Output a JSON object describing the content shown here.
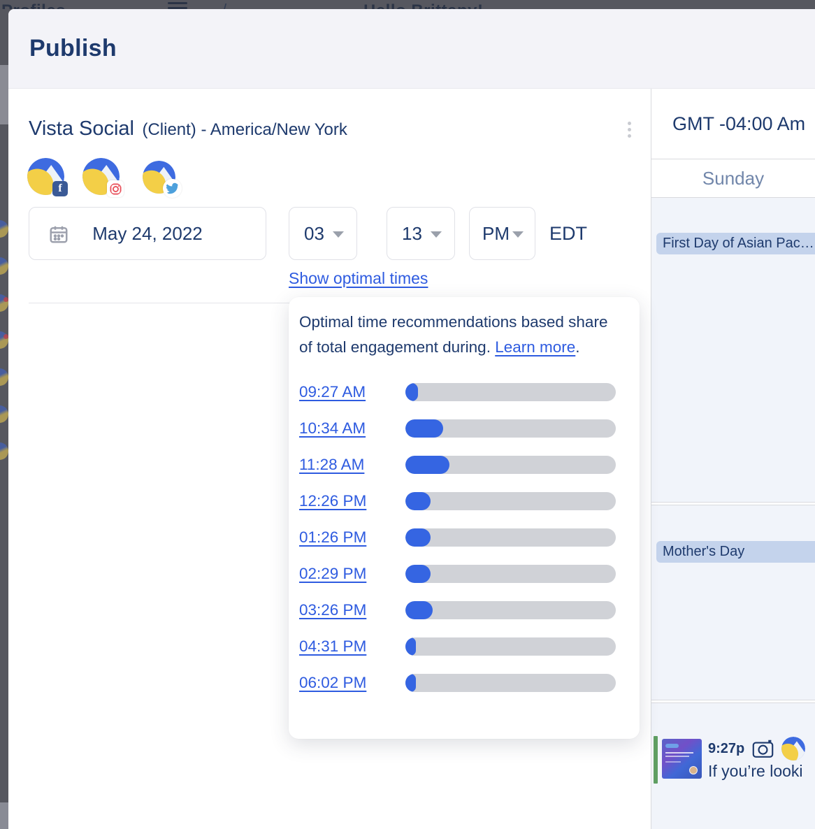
{
  "background": {
    "profiles_label": "Profiles",
    "greeting": "Hello Brittany!"
  },
  "modal": {
    "title": "Publish",
    "scheduler": {
      "title_main": "Vista Social",
      "title_suffix": "(Client) - America/New York",
      "profiles": [
        {
          "network": "facebook"
        },
        {
          "network": "instagram"
        },
        {
          "network": "twitter"
        }
      ],
      "date_value": "May 24, 2022",
      "time": {
        "hour": "03",
        "separator": ":",
        "minute": "13",
        "meridiem": "PM",
        "timezone": "EDT"
      },
      "show_optimal_label": "Show optimal times"
    },
    "optimal_popover": {
      "description": "Optimal time recommendations based share of total engagement during. ",
      "learn_more_label": "Learn more",
      "period": ".",
      "times": [
        {
          "time": "09:27 AM",
          "share": 6
        },
        {
          "time": "10:34 AM",
          "share": 18
        },
        {
          "time": "11:28 AM",
          "share": 21
        },
        {
          "time": "12:26 PM",
          "share": 12
        },
        {
          "time": "01:26 PM",
          "share": 12
        },
        {
          "time": "02:29 PM",
          "share": 12
        },
        {
          "time": "03:26 PM",
          "share": 13
        },
        {
          "time": "04:31 PM",
          "share": 5
        },
        {
          "time": "06:02 PM",
          "share": 5
        }
      ]
    }
  },
  "calendar": {
    "timezone_label": "GMT -04:00 Am",
    "day_label": "Sunday",
    "events": [
      {
        "label": "First Day of Asian Pac…"
      },
      {
        "label": "Mother's Day"
      }
    ],
    "post": {
      "time": "9:27p",
      "snippet": "If you’re looki"
    }
  },
  "colors": {
    "navy": "#1e3a6d",
    "link_blue": "#2e5be0",
    "bar_blue": "#3565e2",
    "bar_track": "#d0d2d7",
    "event_chip": "#c4d3ec",
    "cell_bg": "#f1f4fa",
    "green_accent": "#5f9e62"
  }
}
